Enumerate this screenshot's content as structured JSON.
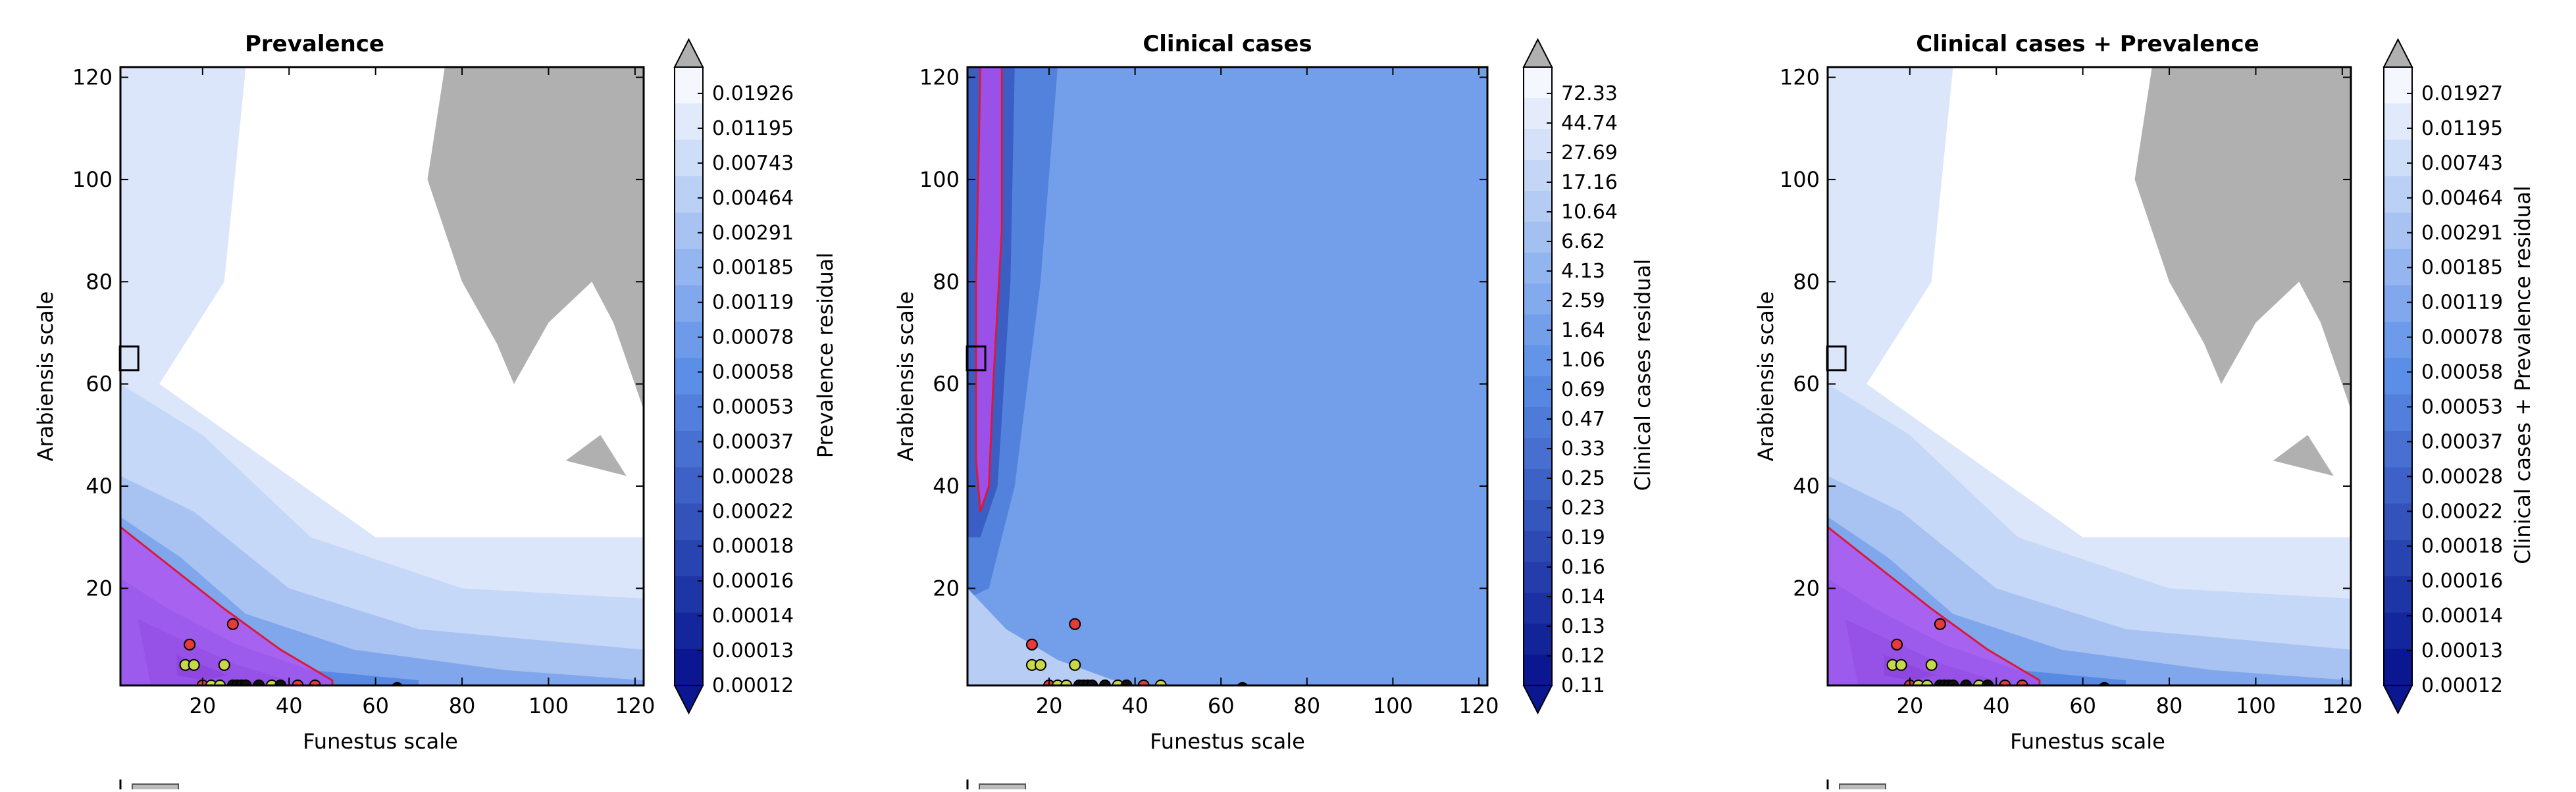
{
  "chart_data": [
    {
      "type": "heatmap",
      "title": "Prevalence",
      "xlabel": "Funestus scale",
      "ylabel": "Arabiensis scale",
      "colorbar_label": "Prevalence residual",
      "xlim": [
        1,
        122
      ],
      "ylim": [
        1,
        122
      ],
      "xticks": [
        20,
        40,
        60,
        80,
        100,
        120
      ],
      "yticks": [
        20,
        40,
        60,
        80,
        100,
        120
      ],
      "colorbar_ticks": [
        "0.01926",
        "0.01195",
        "0.00743",
        "0.00464",
        "0.00291",
        "0.00185",
        "0.00119",
        "0.00078",
        "0.00058",
        "0.00053",
        "0.00037",
        "0.00028",
        "0.00022",
        "0.00018",
        "0.00016",
        "0.00014",
        "0.00013",
        "0.00012"
      ],
      "points": [
        {
          "x": 17,
          "y": 9,
          "c": "red"
        },
        {
          "x": 27,
          "y": 13,
          "c": "red"
        },
        {
          "x": 16,
          "y": 5,
          "c": "yellow"
        },
        {
          "x": 18,
          "y": 5,
          "c": "yellow"
        },
        {
          "x": 25,
          "y": 5,
          "c": "yellow"
        },
        {
          "x": 20,
          "y": 1,
          "c": "red"
        },
        {
          "x": 22,
          "y": 1,
          "c": "yellow"
        },
        {
          "x": 24,
          "y": 1,
          "c": "yellow"
        },
        {
          "x": 27,
          "y": 1,
          "c": "black"
        },
        {
          "x": 28,
          "y": 1,
          "c": "black"
        },
        {
          "x": 29,
          "y": 1,
          "c": "black"
        },
        {
          "x": 30,
          "y": 1,
          "c": "black"
        },
        {
          "x": 33,
          "y": 1,
          "c": "black"
        },
        {
          "x": 36,
          "y": 1,
          "c": "yellow"
        },
        {
          "x": 38,
          "y": 1,
          "c": "black"
        },
        {
          "x": 42,
          "y": 1,
          "c": "red"
        },
        {
          "x": 46,
          "y": 1,
          "c": "red"
        },
        {
          "x": 65,
          "y": 0.5,
          "c": "black"
        }
      ],
      "marker_box": {
        "x": 3,
        "y": 65
      }
    },
    {
      "type": "heatmap",
      "title": "Clinical cases",
      "xlabel": "Funestus scale",
      "ylabel": "Arabiensis scale",
      "colorbar_label": "Clinical cases residual",
      "xlim": [
        1,
        122
      ],
      "ylim": [
        1,
        122
      ],
      "xticks": [
        20,
        40,
        60,
        80,
        100,
        120
      ],
      "yticks": [
        20,
        40,
        60,
        80,
        100,
        120
      ],
      "colorbar_ticks": [
        "72.33",
        "44.74",
        "27.69",
        "17.16",
        "10.64",
        "6.62",
        "4.13",
        "2.59",
        "1.64",
        "1.06",
        "0.69",
        "0.47",
        "0.33",
        "0.25",
        "0.23",
        "0.19",
        "0.16",
        "0.14",
        "0.13",
        "0.12",
        "0.11"
      ],
      "points": [
        {
          "x": 16,
          "y": 9,
          "c": "red"
        },
        {
          "x": 26,
          "y": 13,
          "c": "red"
        },
        {
          "x": 16,
          "y": 5,
          "c": "yellow"
        },
        {
          "x": 18,
          "y": 5,
          "c": "yellow"
        },
        {
          "x": 26,
          "y": 5,
          "c": "yellow"
        },
        {
          "x": 20,
          "y": 1,
          "c": "red"
        },
        {
          "x": 22,
          "y": 1,
          "c": "yellow"
        },
        {
          "x": 24,
          "y": 1,
          "c": "yellow"
        },
        {
          "x": 27,
          "y": 1,
          "c": "black"
        },
        {
          "x": 28,
          "y": 1,
          "c": "black"
        },
        {
          "x": 29,
          "y": 1,
          "c": "black"
        },
        {
          "x": 30,
          "y": 1,
          "c": "black"
        },
        {
          "x": 33,
          "y": 1,
          "c": "black"
        },
        {
          "x": 36,
          "y": 1,
          "c": "yellow"
        },
        {
          "x": 38,
          "y": 1,
          "c": "black"
        },
        {
          "x": 42,
          "y": 1,
          "c": "red"
        },
        {
          "x": 46,
          "y": 1,
          "c": "yellow"
        },
        {
          "x": 65,
          "y": 0.5,
          "c": "black"
        }
      ],
      "marker_box": {
        "x": 3,
        "y": 65
      }
    },
    {
      "type": "heatmap",
      "title": "Clinical cases + Prevalence",
      "xlabel": "Funestus scale",
      "ylabel": "Arabiensis scale",
      "colorbar_label": "Clinical cases + Prevalence residual",
      "xlim": [
        1,
        122
      ],
      "ylim": [
        1,
        122
      ],
      "xticks": [
        20,
        40,
        60,
        80,
        100,
        120
      ],
      "yticks": [
        20,
        40,
        60,
        80,
        100,
        120
      ],
      "colorbar_ticks": [
        "0.01927",
        "0.01195",
        "0.00743",
        "0.00464",
        "0.00291",
        "0.00185",
        "0.00119",
        "0.00078",
        "0.00058",
        "0.00053",
        "0.00037",
        "0.00028",
        "0.00022",
        "0.00018",
        "0.00016",
        "0.00014",
        "0.00013",
        "0.00012"
      ],
      "points": [
        {
          "x": 17,
          "y": 9,
          "c": "red"
        },
        {
          "x": 27,
          "y": 13,
          "c": "red"
        },
        {
          "x": 16,
          "y": 5,
          "c": "yellow"
        },
        {
          "x": 18,
          "y": 5,
          "c": "yellow"
        },
        {
          "x": 25,
          "y": 5,
          "c": "yellow"
        },
        {
          "x": 20,
          "y": 1,
          "c": "red"
        },
        {
          "x": 22,
          "y": 1,
          "c": "yellow"
        },
        {
          "x": 24,
          "y": 1,
          "c": "yellow"
        },
        {
          "x": 27,
          "y": 1,
          "c": "black"
        },
        {
          "x": 28,
          "y": 1,
          "c": "black"
        },
        {
          "x": 29,
          "y": 1,
          "c": "black"
        },
        {
          "x": 30,
          "y": 1,
          "c": "black"
        },
        {
          "x": 33,
          "y": 1,
          "c": "black"
        },
        {
          "x": 36,
          "y": 1,
          "c": "yellow"
        },
        {
          "x": 38,
          "y": 1,
          "c": "black"
        },
        {
          "x": 42,
          "y": 1,
          "c": "red"
        },
        {
          "x": 46,
          "y": 1,
          "c": "red"
        },
        {
          "x": 65,
          "y": 0.5,
          "c": "black"
        }
      ],
      "marker_box": {
        "x": 3,
        "y": 65
      }
    }
  ],
  "colors": {
    "gray_region": "#b0b0b0",
    "cmap_light": "#f4f7fe",
    "cmap_mid": "#5b8ee6",
    "cmap_dark": "#0a1790",
    "highlight_fill": "#b44cf0",
    "highlight_edge": "#d81b3c",
    "point_red": "#e83a3a",
    "point_yellow": "#c8d84a",
    "point_black": "#111111"
  }
}
